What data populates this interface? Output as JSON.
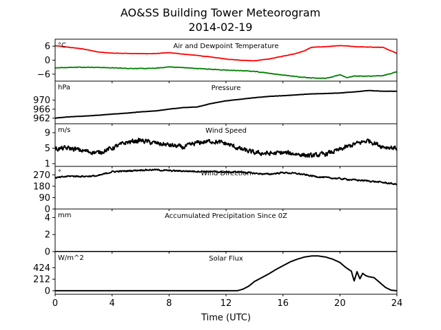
{
  "chart_data": {
    "type": "line",
    "title": "AO&SS Building Tower Meteorogram",
    "subtitle": "2014-02-19",
    "xlabel": "Time (UTC)",
    "xlim": [
      0,
      24
    ],
    "xticks": [
      "0",
      "4",
      "8",
      "12",
      "16",
      "20",
      "24"
    ],
    "panels": [
      {
        "title": "Air and Dewpoint Temperature",
        "unit": "°C",
        "ylim": [
          -9,
          9
        ],
        "yticks": [
          6,
          0,
          -6
        ],
        "yticklabels": [
          "6",
          "0",
          "−6"
        ],
        "series": [
          {
            "color": "#ff0000",
            "x": [
              0,
              1,
              2,
              3,
              4,
              5,
              6,
              7,
              8,
              9,
              10,
              11,
              12,
              13,
              14,
              15,
              16,
              17,
              17.5,
              18,
              19,
              20,
              20.5,
              21,
              22,
              23,
              24
            ],
            "values": [
              6.2,
              5.5,
              4.8,
              3.5,
              3.0,
              2.9,
              2.8,
              2.8,
              3.2,
              2.6,
              2.0,
              1.3,
              0.5,
              0.0,
              -0.3,
              0.5,
              1.7,
              3.0,
              4.0,
              5.5,
              5.8,
              6.2,
              6.1,
              5.8,
              5.6,
              5.5,
              3.0
            ]
          },
          {
            "color": "#008000",
            "x": [
              0,
              1,
              2,
              3,
              4,
              5,
              6,
              7,
              7.7,
              8,
              9,
              10,
              11,
              12,
              13,
              14,
              15,
              16,
              17,
              18,
              19,
              19.5,
              20,
              20.5,
              21,
              22,
              23,
              24
            ],
            "values": [
              -3.3,
              -3.1,
              -3.0,
              -3.1,
              -3.3,
              -3.5,
              -3.6,
              -3.5,
              -3.1,
              -2.9,
              -3.2,
              -3.6,
              -3.9,
              -4.3,
              -4.5,
              -4.8,
              -5.6,
              -6.4,
              -7.1,
              -7.6,
              -7.8,
              -7.2,
              -6.2,
              -7.5,
              -6.8,
              -6.9,
              -6.7,
              -5.0
            ]
          }
        ]
      },
      {
        "title": "Pressure",
        "unit": "hPa",
        "ylim": [
          959.5,
          978.5
        ],
        "yticks": [
          970,
          966,
          962
        ],
        "yticklabels": [
          "970",
          "966",
          "962"
        ],
        "series": [
          {
            "color": "#000000",
            "x": [
              0,
              1,
              2,
              3,
              4,
              5,
              6,
              7,
              8,
              9,
              10,
              11,
              12,
              13,
              14,
              15,
              16,
              17,
              18,
              19,
              20,
              21,
              22,
              23,
              24
            ],
            "values": [
              962.0,
              962.6,
              962.9,
              963.3,
              963.8,
              964.2,
              964.8,
              965.2,
              966.0,
              966.7,
              967.0,
              968.6,
              969.7,
              970.4,
              971.1,
              971.7,
              972.0,
              972.4,
              972.8,
              973.0,
              973.2,
              973.7,
              974.3,
              974.0,
              974.0
            ]
          }
        ]
      },
      {
        "title": "Wind Speed",
        "unit": "m/s",
        "ylim": [
          0.3,
          11.3
        ],
        "yticks": [
          9,
          5,
          1
        ],
        "yticklabels": [
          "9",
          "5",
          "1"
        ],
        "series": [
          {
            "color": "#000000",
            "x": [
              0,
              1,
              2,
              3,
              4,
              5,
              6,
              7,
              8,
              9,
              10,
              11,
              12,
              13,
              14,
              15,
              16,
              17,
              18,
              19,
              20,
              21,
              22,
              23,
              24
            ],
            "values": [
              4.8,
              5.0,
              4.3,
              3.8,
              5.0,
              6.5,
              7.0,
              6.3,
              5.8,
              5.2,
              6.4,
              6.8,
              6.2,
              4.8,
              3.8,
              3.6,
              3.8,
              3.5,
              3.0,
              3.5,
              4.6,
              6.0,
              7.0,
              5.4,
              5.0
            ]
          }
        ]
      },
      {
        "title": "Wind Direction",
        "unit": "°",
        "ylim": [
          0,
          337
        ],
        "yticks": [
          270,
          180,
          90,
          0
        ],
        "yticklabels": [
          "270",
          "180",
          "90",
          "0"
        ],
        "series": [
          {
            "color": "#000000",
            "x": [
              0,
              1,
              2,
              3,
              4,
              5,
              6,
              7,
              8,
              9,
              10,
              11,
              12,
              13,
              14,
              15,
              16,
              17,
              18,
              19,
              20,
              21,
              22,
              23,
              24
            ],
            "values": [
              245,
              260,
              258,
              262,
              295,
              300,
              308,
              310,
              303,
              300,
              298,
              295,
              292,
              293,
              282,
              275,
              288,
              280,
              262,
              248,
              240,
              230,
              222,
              210,
              195
            ]
          }
        ]
      },
      {
        "title": "Accumulated Precipitation Since 0Z",
        "unit": "mm",
        "ylim": [
          0,
          5
        ],
        "yticks": [
          4,
          2,
          0
        ],
        "yticklabels": [
          "4",
          "2",
          "0"
        ],
        "series": [
          {
            "color": "#000000",
            "x": [
              0,
              24
            ],
            "values": [
              0,
              0
            ]
          }
        ]
      },
      {
        "title": "Solar Flux",
        "unit": "W/m^2",
        "ylim": [
          -65,
          720
        ],
        "yticks": [
          424,
          212,
          0
        ],
        "yticklabels": [
          "424",
          "212",
          "0"
        ],
        "series": [
          {
            "color": "#000000",
            "x": [
              0,
              12.8,
              13.2,
              13.6,
              14,
              14.5,
              15,
              15.5,
              16,
              16.5,
              17,
              17.5,
              18,
              18.5,
              19,
              19.5,
              20,
              20.4,
              20.8,
              21,
              21.2,
              21.4,
              21.6,
              21.8,
              22,
              22.4,
              22.8,
              23.2,
              23.6,
              24
            ],
            "values": [
              0,
              0,
              30,
              85,
              170,
              240,
              310,
              390,
              460,
              530,
              580,
              620,
              640,
              640,
              620,
              580,
              520,
              430,
              360,
              180,
              350,
              220,
              320,
              280,
              260,
              240,
              150,
              60,
              10,
              0
            ]
          }
        ]
      }
    ]
  }
}
